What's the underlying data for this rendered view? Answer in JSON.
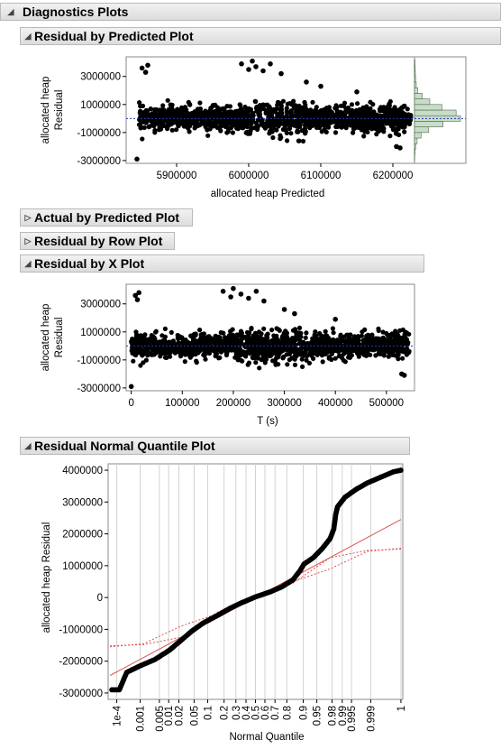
{
  "sections": {
    "diagnostics": {
      "title": "Diagnostics Plots",
      "state": "open"
    },
    "residual_predicted": {
      "title": "Residual by Predicted Plot",
      "state": "open"
    },
    "actual_predicted": {
      "title": "Actual by Predicted Plot",
      "state": "closed"
    },
    "residual_row": {
      "title": "Residual by Row Plot",
      "state": "closed"
    },
    "residual_x": {
      "title": "Residual by X Plot",
      "state": "open"
    },
    "normal_quantile": {
      "title": "Residual Normal Quantile Plot",
      "state": "open"
    }
  },
  "colors": {
    "point": "#000000",
    "zero_line": "#1f3faa",
    "fit_line": "#d9534f",
    "hist_fill": "#c9dcc9",
    "grid": "#d3d3d3"
  },
  "chart_data": [
    {
      "id": "residual_by_predicted",
      "type": "scatter",
      "title": "Residual by Predicted Plot",
      "xlabel": "allocated heap Predicted",
      "ylabel": [
        "allocated heap",
        "Residual"
      ],
      "xlim": [
        5830000,
        6230000
      ],
      "ylim": [
        -3200000,
        4400000
      ],
      "x_ticks": [
        5900000,
        6000000,
        6100000,
        6200000
      ],
      "x_tick_labels": [
        "5900000",
        "6000000",
        "6100000",
        "6200000"
      ],
      "y_ticks": [
        3000000,
        1000000,
        -1000000,
        -3000000
      ],
      "y_tick_labels": [
        "3000000",
        "1000000",
        "-1000000",
        "-3000000"
      ],
      "reference_line_y": 0,
      "marginal_histogram": {
        "bins": [
          -3000000,
          -2600000,
          -2200000,
          -1800000,
          -1400000,
          -1000000,
          -600000,
          -200000,
          200000,
          600000,
          1000000,
          1400000,
          1800000,
          2200000,
          2600000,
          3000000,
          3400000,
          3800000
        ],
        "counts": [
          2,
          4,
          10,
          24,
          60,
          130,
          260,
          420,
          380,
          250,
          140,
          70,
          30,
          16,
          10,
          8,
          6,
          4
        ]
      },
      "points": [
        [
          5845000,
          -2900000
        ],
        [
          5852000,
          3600000
        ],
        [
          5857000,
          3300000
        ],
        [
          5860000,
          3800000
        ],
        [
          5990000,
          3900000
        ],
        [
          6000000,
          3500000
        ],
        [
          6005000,
          4100000
        ],
        [
          6010000,
          3700000
        ],
        [
          6020000,
          3400000
        ],
        [
          6030000,
          3900000
        ],
        [
          6045000,
          3200000
        ],
        [
          6080000,
          2600000
        ],
        [
          6100000,
          2300000
        ],
        [
          6150000,
          1900000
        ],
        [
          6210000,
          -2100000
        ],
        [
          6205000,
          -2000000
        ]
      ]
    },
    {
      "id": "residual_by_x",
      "type": "scatter",
      "title": "Residual by X Plot",
      "xlabel": "T (s)",
      "ylabel": [
        "allocated heap",
        "Residual"
      ],
      "xlim": [
        -10000,
        555000
      ],
      "ylim": [
        -3200000,
        4400000
      ],
      "x_ticks": [
        0,
        100000,
        200000,
        300000,
        400000,
        500000
      ],
      "x_tick_labels": [
        "0",
        "100000",
        "200000",
        "300000",
        "400000",
        "500000"
      ],
      "y_ticks": [
        3000000,
        1000000,
        -1000000,
        -3000000
      ],
      "y_tick_labels": [
        "3000000",
        "1000000",
        "-1000000",
        "-3000000"
      ],
      "reference_line_y": 0,
      "points": [
        [
          0,
          -2900000
        ],
        [
          8000,
          3600000
        ],
        [
          12000,
          3300000
        ],
        [
          15000,
          3800000
        ],
        [
          180000,
          3900000
        ],
        [
          195000,
          3500000
        ],
        [
          200000,
          4100000
        ],
        [
          215000,
          3700000
        ],
        [
          230000,
          3400000
        ],
        [
          245000,
          3900000
        ],
        [
          260000,
          3200000
        ],
        [
          300000,
          2600000
        ],
        [
          320000,
          2300000
        ],
        [
          400000,
          1900000
        ],
        [
          535000,
          -2100000
        ],
        [
          530000,
          -2000000
        ]
      ]
    },
    {
      "id": "residual_normal_quantile",
      "type": "scatter",
      "title": "Residual Normal Quantile Plot",
      "xlabel": "Normal Quantile",
      "ylabel": "allocated heap Residual",
      "ylim": [
        -3200000,
        4200000
      ],
      "y_ticks": [
        4000000,
        3000000,
        2000000,
        1000000,
        0,
        -1000000,
        -2000000,
        -3000000
      ],
      "y_tick_labels": [
        "4000000",
        "3000000",
        "2000000",
        "1000000",
        "0",
        "-1000000",
        "-2000000",
        "-3000000"
      ],
      "x_probabilities": [
        0.0001,
        0.001,
        0.005,
        0.01,
        0.02,
        0.05,
        0.1,
        0.2,
        0.3,
        0.4,
        0.5,
        0.6,
        0.7,
        0.8,
        0.9,
        0.95,
        0.98,
        0.99,
        0.995,
        0.999,
        1
      ],
      "x_tick_labels": [
        "1e-4",
        "0.001",
        "0.005",
        "0.01",
        "0.02",
        "0.05",
        "0.1",
        "0.2",
        "0.3",
        "0.4",
        "0.5",
        "0.6",
        "0.7",
        "0.8",
        "0.9",
        "0.95",
        "0.98",
        "0.99",
        "0.995",
        "0.999",
        "1"
      ],
      "fit_line": {
        "z": [
          -3.9,
          3.9
        ],
        "y": [
          -2450000,
          2450000
        ]
      },
      "confidence_band": {
        "lower": [
          [
            -3.9,
            -1550000
          ],
          [
            -3.0,
            -1450000
          ],
          [
            -2.0,
            -900000
          ],
          [
            -1.0,
            -500000
          ],
          [
            0,
            0
          ],
          [
            1.0,
            450000
          ],
          [
            2.0,
            1250000
          ],
          [
            3.0,
            1480000
          ],
          [
            3.9,
            1520000
          ]
        ]
      },
      "points_zy": [
        [
          -3.85,
          -2900000
        ],
        [
          -3.65,
          -2900000
        ],
        [
          -3.45,
          -2350000
        ],
        [
          -3.1,
          -2150000
        ],
        [
          -2.7,
          -1950000
        ],
        [
          -2.3,
          -1650000
        ],
        [
          -2.0,
          -1350000
        ],
        [
          -1.7,
          -1050000
        ],
        [
          -1.4,
          -800000
        ],
        [
          -1.0,
          -550000
        ],
        [
          -0.7,
          -350000
        ],
        [
          -0.4,
          -180000
        ],
        [
          0,
          20000
        ],
        [
          0.4,
          180000
        ],
        [
          0.7,
          330000
        ],
        [
          1.0,
          550000
        ],
        [
          1.2,
          850000
        ],
        [
          1.3,
          1050000
        ],
        [
          1.55,
          1250000
        ],
        [
          1.8,
          1550000
        ],
        [
          2.0,
          1850000
        ],
        [
          2.1,
          2150000
        ],
        [
          2.15,
          2600000
        ],
        [
          2.2,
          2850000
        ],
        [
          2.4,
          3150000
        ],
        [
          2.7,
          3400000
        ],
        [
          3.0,
          3600000
        ],
        [
          3.4,
          3800000
        ],
        [
          3.7,
          3950000
        ],
        [
          3.9,
          4000000
        ]
      ]
    }
  ]
}
